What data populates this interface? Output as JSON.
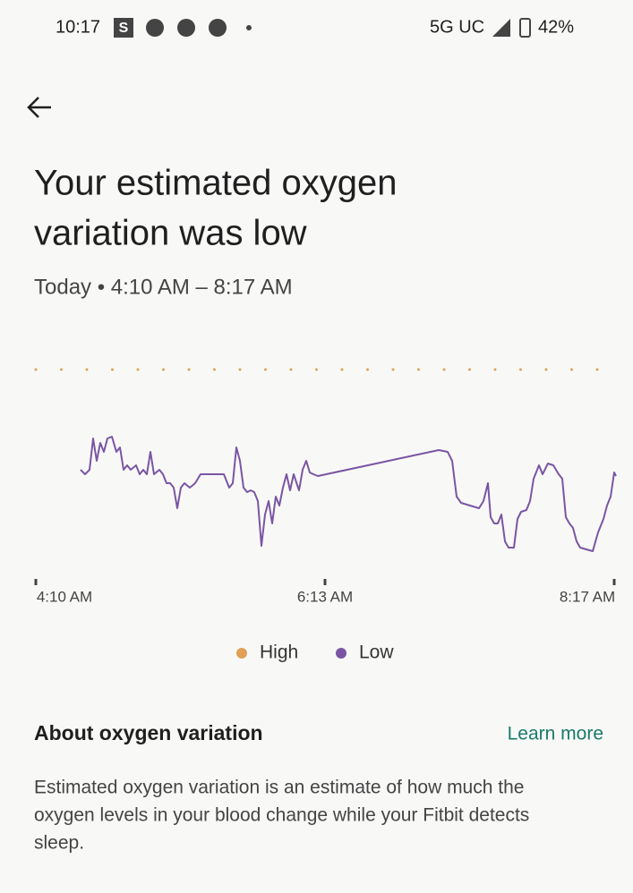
{
  "status_bar": {
    "time": "10:17",
    "app_icon": "S",
    "network": "5G UC",
    "battery": "42%"
  },
  "header": {
    "title_lines": [
      "Your estimated oxygen",
      "variation was low"
    ],
    "subtitle": "Today • 4:10 AM – 8:17 AM"
  },
  "chart": {
    "x_labels": [
      "4:10 AM",
      "6:13 AM",
      "8:17 AM"
    ],
    "legend": [
      "High",
      "Low"
    ]
  },
  "about": {
    "heading": "About oxygen variation",
    "link": "Learn more",
    "text_lines": [
      "Estimated oxygen variation is an estimate of how much the",
      "oxygen levels in your blood change while your Fitbit detects",
      "sleep."
    ]
  }
}
